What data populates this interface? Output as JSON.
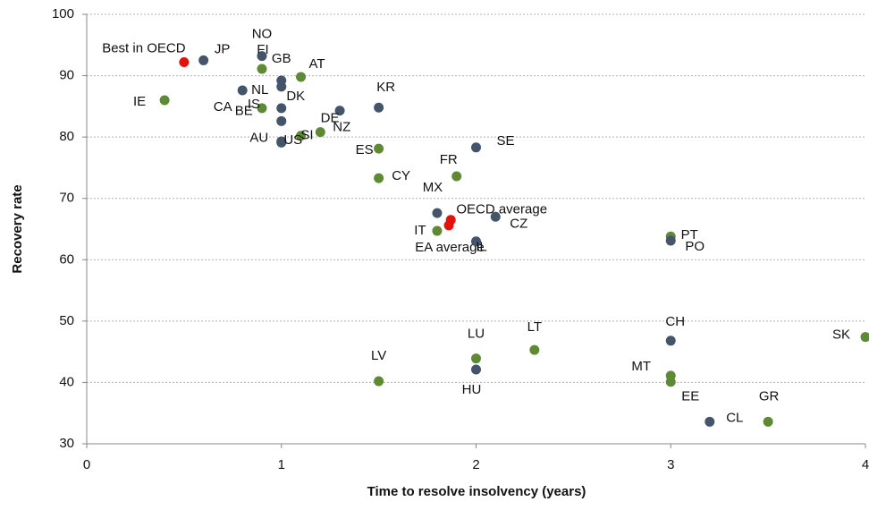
{
  "chart_data": {
    "type": "scatter",
    "x_label": "Time to resolve insolvency (years)",
    "y_label": "Recovery rate",
    "xlim": [
      0,
      4
    ],
    "xticks": [
      0,
      1,
      2,
      3,
      4
    ],
    "ylim": [
      30,
      100
    ],
    "yticks": [
      30,
      40,
      50,
      60,
      70,
      80,
      90,
      100
    ],
    "grid": true,
    "labels": [
      "Best in OECD",
      "JP",
      "NO",
      "GB",
      "FI",
      "AT",
      "IE",
      "NL",
      "CA",
      "IS",
      "BE",
      "DK",
      "DE",
      "KR",
      "NZ",
      "SI",
      "AU",
      "US",
      "ES",
      "SE",
      "FR",
      "CY",
      "MX",
      "OECD average",
      "EA average",
      "CZ",
      "IT",
      "IL",
      "PT",
      "PO",
      "SK",
      "CH",
      "LT",
      "LU",
      "HU",
      "MT",
      "EE",
      "LV",
      "CL",
      "GR"
    ],
    "x": [
      0.5,
      0.6,
      0.9,
      1.0,
      0.9,
      1.1,
      0.4,
      1.0,
      0.8,
      0.9,
      1.0,
      1.0,
      1.3,
      1.5,
      1.2,
      1.1,
      1.0,
      1.0,
      1.5,
      2.0,
      1.9,
      1.5,
      1.8,
      1.87,
      1.86,
      2.1,
      1.8,
      2.0,
      3.0,
      3.0,
      4.0,
      3.0,
      2.3,
      2.0,
      2.0,
      3.0,
      3.0,
      1.5,
      3.2,
      3.5
    ],
    "y": [
      92.2,
      92.5,
      93.2,
      89.2,
      91.1,
      89.8,
      86.0,
      88.2,
      87.6,
      84.7,
      82.6,
      84.7,
      84.3,
      84.8,
      80.8,
      80.2,
      79.1,
      79.3,
      78.1,
      78.3,
      73.6,
      73.3,
      67.6,
      66.5,
      65.6,
      67.0,
      64.7,
      63.0,
      63.8,
      63.1,
      47.4,
      46.8,
      45.3,
      43.9,
      42.1,
      41.1,
      40.1,
      40.2,
      33.6,
      33.6
    ],
    "colors": [
      "#e3120b",
      "#44546a",
      "#44546a",
      "#44546a",
      "#5e8a34",
      "#5e8a34",
      "#5e8a34",
      "#44546a",
      "#44546a",
      "#5e8a34",
      "#44546a",
      "#44546a",
      "#44546a",
      "#44546a",
      "#5e8a34",
      "#5e8a34",
      "#44546a",
      "#44546a",
      "#5e8a34",
      "#44546a",
      "#5e8a34",
      "#5e8a34",
      "#44546a",
      "#e3120b",
      "#e3120b",
      "#44546a",
      "#5e8a34",
      "#44546a",
      "#5e8a34",
      "#44546a",
      "#5e8a34",
      "#44546a",
      "#5e8a34",
      "#5e8a34",
      "#44546a",
      "#5e8a34",
      "#5e8a34",
      "#5e8a34",
      "#44546a",
      "#5e8a34"
    ]
  }
}
